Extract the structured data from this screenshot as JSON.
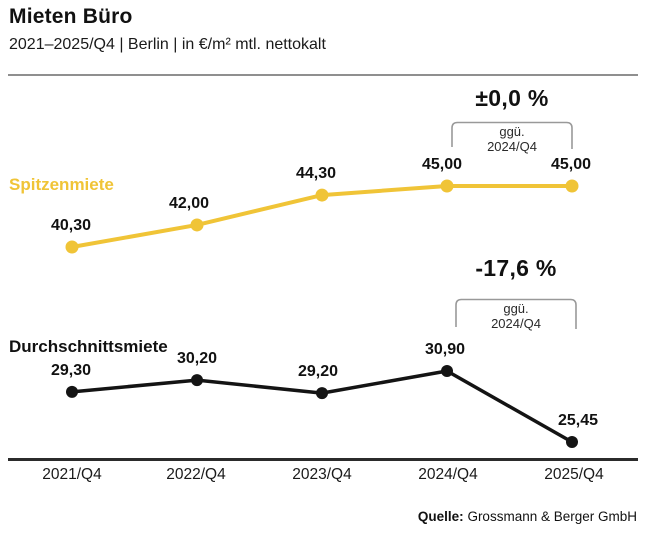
{
  "header": {
    "title": "Mieten Büro",
    "subtitle": "2021–2025/Q4 | Berlin | in €/m² mtl. nettokalt"
  },
  "chart_data": {
    "type": "line",
    "categories": [
      "2021/Q4",
      "2022/Q4",
      "2023/Q4",
      "2024/Q4",
      "2025/Q4"
    ],
    "series": [
      {
        "name": "Spitzenmiete",
        "values": [
          40.3,
          42.0,
          44.3,
          45.0,
          45.0
        ],
        "labels": [
          "40,30",
          "42,00",
          "44,30",
          "45,00",
          "45,00"
        ],
        "color": "#F0C437",
        "annotation": {
          "change": "±0,0 %",
          "vs_line1": "ggü.",
          "vs_line2": "2024/Q4"
        }
      },
      {
        "name": "Durchschnittsmiete",
        "values": [
          29.3,
          30.2,
          29.2,
          30.9,
          25.45
        ],
        "labels": [
          "29,30",
          "30,20",
          "29,20",
          "30,90",
          "25,45"
        ],
        "color": "#141414",
        "annotation": {
          "change": "-17,6 %",
          "vs_line1": "ggü.",
          "vs_line2": "2024/Q4"
        }
      }
    ],
    "unit": "€/m² mtl. nettokalt",
    "layout_hints": {
      "x_axis_line": true,
      "y_axis_visible": false,
      "value_labels": "above-points",
      "series_labels_position": "left-of-line"
    }
  },
  "footer": {
    "source_label": "Quelle:",
    "source_value": " Grossmann & Berger GmbH"
  },
  "colors": {
    "accent_yellow": "#F0C437",
    "line_black": "#141414",
    "axis_line": "#2b2b2b",
    "bracket_gray": "#999999",
    "header_rule_gray": "#8f8f8f"
  }
}
